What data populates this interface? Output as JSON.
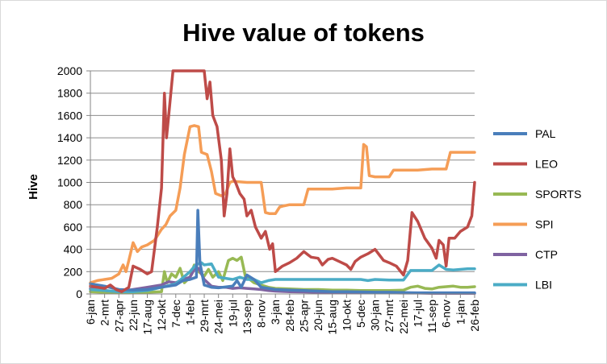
{
  "chart_data": {
    "type": "line",
    "title": "Hive value of tokens",
    "xlabel": "",
    "ylabel": "Hive",
    "ylim": [
      0,
      2000
    ],
    "yticks": [
      0,
      200,
      400,
      600,
      800,
      1000,
      1200,
      1400,
      1600,
      1800,
      2000
    ],
    "grid": "horizontal",
    "legend_position": "right",
    "x_tick_labels": [
      "6-jan",
      "2-mrt",
      "27-apr",
      "22-jun",
      "17-aug",
      "12-okt",
      "7-dec",
      "1-feb",
      "29-mrt",
      "24-mei",
      "19-jul",
      "13-sep",
      "8-nov",
      "3-jan",
      "28-feb",
      "25-apr",
      "20-jun",
      "15-aug",
      "10-okt",
      "5-dec",
      "30-jan",
      "27-mrt",
      "22-mei",
      "17-jul",
      "11-sep",
      "6-nov",
      "1-jan",
      "26-feb"
    ],
    "x": [
      0,
      1,
      2,
      3,
      4,
      5,
      6,
      7,
      8,
      9,
      10,
      11,
      12,
      13,
      14,
      15,
      16,
      17,
      18,
      19,
      20,
      21,
      22,
      23,
      24,
      25,
      26,
      27
    ],
    "series": [
      {
        "name": "PAL",
        "color": "#4a7ebb",
        "points": [
          [
            0,
            90
          ],
          [
            1,
            70
          ],
          [
            2,
            40
          ],
          [
            3,
            35
          ],
          [
            4,
            40
          ],
          [
            5,
            60
          ],
          [
            6,
            80
          ],
          [
            6.5,
            120
          ],
          [
            7,
            130
          ],
          [
            7.45,
            150
          ],
          [
            7.55,
            750
          ],
          [
            7.7,
            280
          ],
          [
            8,
            80
          ],
          [
            8.5,
            60
          ],
          [
            9,
            55
          ],
          [
            10,
            70
          ],
          [
            10.3,
            120
          ],
          [
            10.6,
            60
          ],
          [
            11,
            170
          ],
          [
            11.5,
            130
          ],
          [
            12,
            60
          ],
          [
            13,
            40
          ],
          [
            14,
            35
          ],
          [
            15,
            30
          ],
          [
            16,
            25
          ],
          [
            17,
            20
          ],
          [
            18,
            20
          ],
          [
            19,
            18
          ],
          [
            20,
            15
          ],
          [
            21,
            15
          ],
          [
            22,
            12
          ],
          [
            23,
            10
          ],
          [
            24,
            10
          ],
          [
            25,
            10
          ],
          [
            26,
            10
          ],
          [
            27,
            10
          ]
        ]
      },
      {
        "name": "LEO",
        "color": "#be4b48",
        "points": [
          [
            0,
            70
          ],
          [
            0.5,
            60
          ],
          [
            1,
            50
          ],
          [
            1.4,
            80
          ],
          [
            1.8,
            40
          ],
          [
            2.2,
            20
          ],
          [
            2.7,
            60
          ],
          [
            3,
            250
          ],
          [
            3.5,
            220
          ],
          [
            4,
            180
          ],
          [
            4.3,
            200
          ],
          [
            4.7,
            600
          ],
          [
            5,
            950
          ],
          [
            5.2,
            1800
          ],
          [
            5.35,
            1400
          ],
          [
            5.5,
            1600
          ],
          [
            5.8,
            2000
          ],
          [
            6,
            2000
          ],
          [
            6.5,
            2000
          ],
          [
            7,
            2000
          ],
          [
            7.5,
            2000
          ],
          [
            8,
            2000
          ],
          [
            8.2,
            1750
          ],
          [
            8.4,
            1900
          ],
          [
            8.6,
            1600
          ],
          [
            8.9,
            1500
          ],
          [
            9.2,
            1200
          ],
          [
            9.4,
            700
          ],
          [
            9.6,
            900
          ],
          [
            9.8,
            1300
          ],
          [
            10,
            1050
          ],
          [
            10.2,
            1000
          ],
          [
            10.5,
            900
          ],
          [
            10.8,
            850
          ],
          [
            11,
            700
          ],
          [
            11.3,
            750
          ],
          [
            11.6,
            600
          ],
          [
            12,
            500
          ],
          [
            12.3,
            560
          ],
          [
            12.6,
            400
          ],
          [
            12.8,
            450
          ],
          [
            13,
            200
          ],
          [
            13.5,
            250
          ],
          [
            14,
            280
          ],
          [
            14.5,
            320
          ],
          [
            15,
            380
          ],
          [
            15.5,
            330
          ],
          [
            16,
            320
          ],
          [
            16.3,
            260
          ],
          [
            16.7,
            310
          ],
          [
            17,
            320
          ],
          [
            17.5,
            290
          ],
          [
            18,
            260
          ],
          [
            18.3,
            220
          ],
          [
            18.6,
            290
          ],
          [
            19,
            330
          ],
          [
            19.5,
            360
          ],
          [
            20,
            400
          ],
          [
            20.3,
            350
          ],
          [
            20.6,
            300
          ],
          [
            21,
            280
          ],
          [
            21.5,
            250
          ],
          [
            22,
            170
          ],
          [
            22.3,
            300
          ],
          [
            22.6,
            730
          ],
          [
            23,
            650
          ],
          [
            23.5,
            500
          ],
          [
            24,
            410
          ],
          [
            24.3,
            320
          ],
          [
            24.5,
            480
          ],
          [
            24.8,
            440
          ],
          [
            25,
            250
          ],
          [
            25.2,
            500
          ],
          [
            25.6,
            500
          ],
          [
            26,
            560
          ],
          [
            26.5,
            600
          ],
          [
            26.8,
            700
          ],
          [
            27,
            1000
          ]
        ]
      },
      {
        "name": "SPORTS",
        "color": "#98b954",
        "points": [
          [
            0,
            20
          ],
          [
            1,
            15
          ],
          [
            2,
            10
          ],
          [
            3,
            10
          ],
          [
            4,
            15
          ],
          [
            5,
            20
          ],
          [
            5.2,
            200
          ],
          [
            5.4,
            100
          ],
          [
            5.7,
            180
          ],
          [
            6,
            150
          ],
          [
            6.3,
            230
          ],
          [
            6.6,
            100
          ],
          [
            7,
            150
          ],
          [
            7.3,
            260
          ],
          [
            7.6,
            200
          ],
          [
            8,
            160
          ],
          [
            8.3,
            220
          ],
          [
            8.6,
            150
          ],
          [
            9,
            200
          ],
          [
            9.3,
            120
          ],
          [
            9.7,
            300
          ],
          [
            10,
            320
          ],
          [
            10.3,
            300
          ],
          [
            10.6,
            330
          ],
          [
            10.9,
            150
          ],
          [
            11.2,
            130
          ],
          [
            11.5,
            100
          ],
          [
            12,
            80
          ],
          [
            12.5,
            60
          ],
          [
            13,
            50
          ],
          [
            14,
            45
          ],
          [
            15,
            40
          ],
          [
            16,
            40
          ],
          [
            17,
            35
          ],
          [
            18,
            35
          ],
          [
            19,
            30
          ],
          [
            20,
            30
          ],
          [
            21,
            30
          ],
          [
            22,
            35
          ],
          [
            22.5,
            60
          ],
          [
            23,
            70
          ],
          [
            23.5,
            50
          ],
          [
            24,
            45
          ],
          [
            24.5,
            60
          ],
          [
            25,
            65
          ],
          [
            25.5,
            70
          ],
          [
            26,
            60
          ],
          [
            26.5,
            60
          ],
          [
            27,
            65
          ]
        ]
      },
      {
        "name": "SPI",
        "color": "#f59d56",
        "points": [
          [
            0,
            100
          ],
          [
            0.5,
            120
          ],
          [
            1,
            130
          ],
          [
            1.5,
            140
          ],
          [
            2,
            180
          ],
          [
            2.3,
            260
          ],
          [
            2.5,
            200
          ],
          [
            2.7,
            300
          ],
          [
            3,
            460
          ],
          [
            3.3,
            380
          ],
          [
            3.6,
            420
          ],
          [
            4,
            440
          ],
          [
            4.5,
            480
          ],
          [
            5,
            580
          ],
          [
            5.3,
            620
          ],
          [
            5.6,
            700
          ],
          [
            6,
            750
          ],
          [
            6.3,
            950
          ],
          [
            6.6,
            1250
          ],
          [
            7,
            1500
          ],
          [
            7.3,
            1510
          ],
          [
            7.6,
            1500
          ],
          [
            7.8,
            1270
          ],
          [
            8.2,
            1250
          ],
          [
            8.5,
            1100
          ],
          [
            8.8,
            900
          ],
          [
            9.2,
            880
          ],
          [
            9.5,
            900
          ],
          [
            9.8,
            1000
          ],
          [
            10,
            1010
          ],
          [
            11,
            1000
          ],
          [
            12,
            1000
          ],
          [
            12.3,
            730
          ],
          [
            12.6,
            720
          ],
          [
            13,
            720
          ],
          [
            13.3,
            780
          ],
          [
            13.6,
            790
          ],
          [
            14,
            800
          ],
          [
            15,
            800
          ],
          [
            15.3,
            940
          ],
          [
            16,
            940
          ],
          [
            17,
            940
          ],
          [
            18,
            950
          ],
          [
            19,
            950
          ],
          [
            19.2,
            1340
          ],
          [
            19.4,
            1320
          ],
          [
            19.6,
            1060
          ],
          [
            20,
            1050
          ],
          [
            21,
            1050
          ],
          [
            21.3,
            1110
          ],
          [
            22,
            1110
          ],
          [
            23,
            1110
          ],
          [
            24,
            1120
          ],
          [
            25,
            1120
          ],
          [
            25.3,
            1270
          ],
          [
            26,
            1270
          ],
          [
            27,
            1270
          ]
        ]
      },
      {
        "name": "CTP",
        "color": "#7f63a1",
        "points": [
          [
            0,
            50
          ],
          [
            1,
            30
          ],
          [
            2,
            20
          ],
          [
            3,
            40
          ],
          [
            4,
            60
          ],
          [
            5,
            80
          ],
          [
            5.5,
            110
          ],
          [
            6,
            100
          ],
          [
            6.5,
            130
          ],
          [
            7,
            150
          ],
          [
            7.3,
            220
          ],
          [
            7.6,
            230
          ],
          [
            8,
            130
          ],
          [
            8.5,
            70
          ],
          [
            9,
            60
          ],
          [
            9.5,
            60
          ],
          [
            10,
            50
          ],
          [
            10.5,
            55
          ],
          [
            11,
            50
          ],
          [
            11.5,
            45
          ],
          [
            12,
            40
          ],
          [
            12.5,
            30
          ],
          [
            13,
            25
          ],
          [
            14,
            20
          ],
          [
            15,
            18
          ],
          [
            16,
            15
          ],
          [
            17,
            15
          ],
          [
            18,
            12
          ],
          [
            19,
            12
          ],
          [
            20,
            10
          ],
          [
            21,
            10
          ],
          [
            22,
            8
          ],
          [
            23,
            8
          ],
          [
            24,
            6
          ],
          [
            25,
            5
          ],
          [
            26,
            5
          ],
          [
            27,
            5
          ]
        ]
      },
      {
        "name": "LBI",
        "color": "#4bacc6",
        "points": [
          [
            0,
            40
          ],
          [
            1,
            30
          ],
          [
            2,
            20
          ],
          [
            3,
            20
          ],
          [
            4,
            30
          ],
          [
            5,
            60
          ],
          [
            6,
            90
          ],
          [
            7,
            200
          ],
          [
            7.4,
            260
          ],
          [
            7.8,
            280
          ],
          [
            8,
            260
          ],
          [
            8.5,
            270
          ],
          [
            9,
            150
          ],
          [
            9.5,
            140
          ],
          [
            10,
            130
          ],
          [
            10.5,
            150
          ],
          [
            11,
            130
          ],
          [
            11.5,
            130
          ],
          [
            12,
            100
          ],
          [
            12.5,
            120
          ],
          [
            13,
            130
          ],
          [
            14,
            130
          ],
          [
            15,
            130
          ],
          [
            16,
            130
          ],
          [
            17,
            130
          ],
          [
            18,
            130
          ],
          [
            19,
            130
          ],
          [
            19.5,
            120
          ],
          [
            20,
            130
          ],
          [
            21,
            125
          ],
          [
            22,
            125
          ],
          [
            22.5,
            210
          ],
          [
            23,
            210
          ],
          [
            24,
            210
          ],
          [
            24.5,
            260
          ],
          [
            25,
            220
          ],
          [
            25.5,
            215
          ],
          [
            26,
            220
          ],
          [
            26.5,
            225
          ],
          [
            27,
            225
          ]
        ]
      }
    ]
  }
}
